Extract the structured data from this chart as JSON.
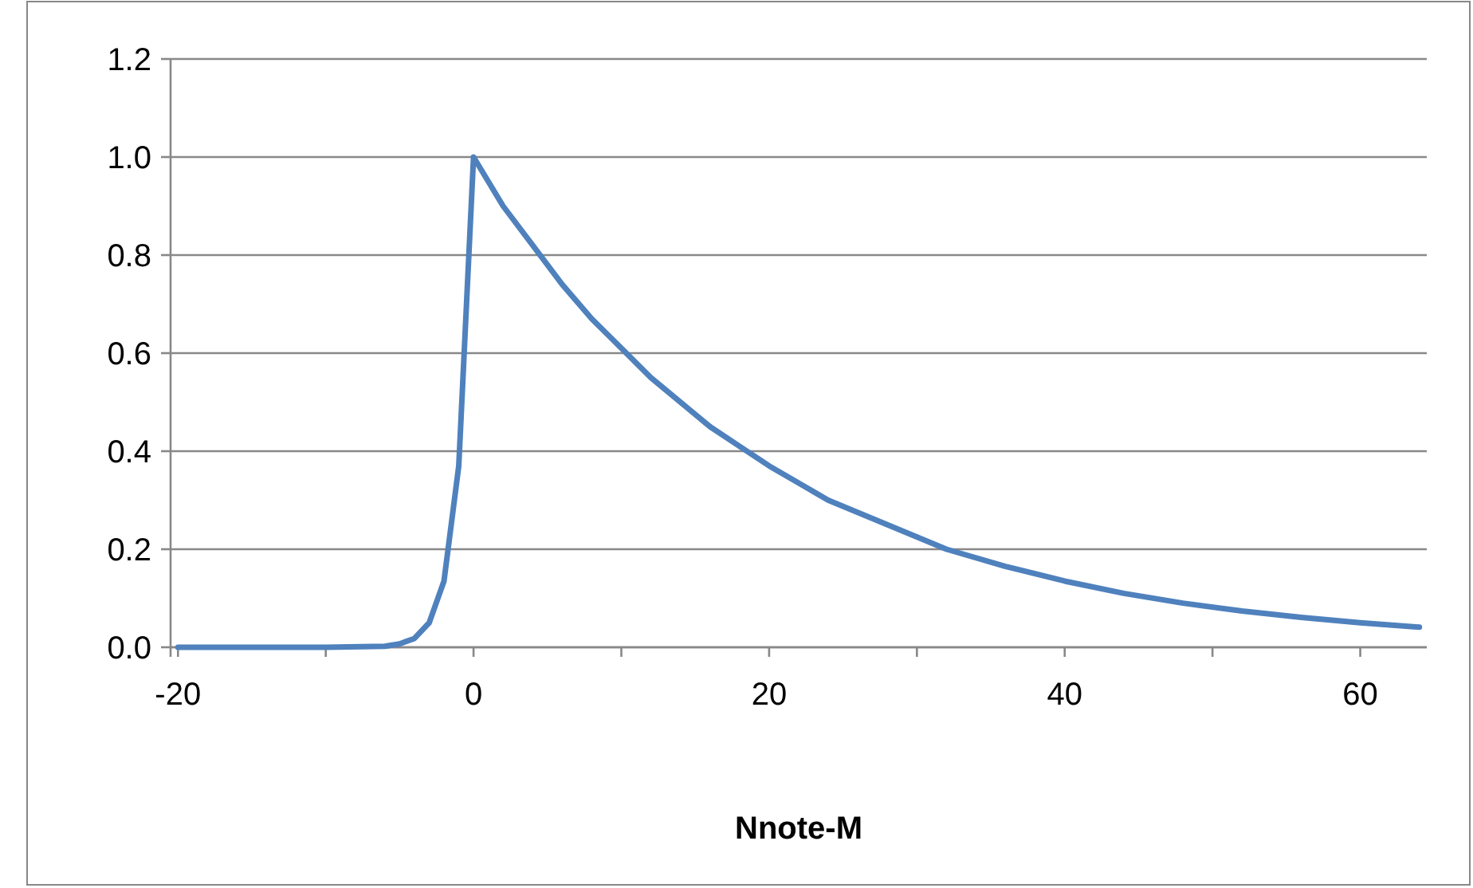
{
  "chart_data": {
    "type": "line",
    "xlabel": "Nnote-M",
    "x": [
      -20,
      -10,
      -6,
      -5,
      -4,
      -3,
      -2,
      -1,
      0,
      2,
      4,
      6,
      8,
      10,
      12,
      14,
      16,
      18,
      20,
      24,
      28,
      32,
      36,
      40,
      44,
      48,
      52,
      56,
      60,
      64
    ],
    "series": [
      {
        "color": "#4f81bd",
        "values": [
          0,
          0,
          0.002,
          0.007,
          0.018,
          0.05,
          0.135,
          0.37,
          1.0,
          0.9,
          0.82,
          0.74,
          0.67,
          0.61,
          0.55,
          0.5,
          0.45,
          0.41,
          0.37,
          0.3,
          0.25,
          0.2,
          0.165,
          0.135,
          0.11,
          0.09,
          0.074,
          0.061,
          0.05,
          0.041
        ]
      }
    ],
    "xlim": [
      -20.5,
      64.5
    ],
    "xticks": [
      -20,
      {
        "value": -10,
        "label": null
      },
      0,
      {
        "value": 10,
        "label": null
      },
      20,
      {
        "value": 30,
        "label": null
      },
      40,
      {
        "value": 50,
        "label": null
      },
      60
    ],
    "ylim": [
      0,
      1.2
    ],
    "yticks": [
      {
        "value": 0,
        "label": "0.0"
      },
      {
        "value": 0.2,
        "label": "0.2"
      },
      {
        "value": 0.4,
        "label": "0.4"
      },
      {
        "value": 0.6,
        "label": "0.6"
      },
      {
        "value": 0.8,
        "label": "0.8"
      },
      {
        "value": 1,
        "label": "1.0"
      },
      {
        "value": 1.2,
        "label": "1.2"
      }
    ],
    "grid": "y",
    "marker": "none",
    "line_style": "solid"
  }
}
